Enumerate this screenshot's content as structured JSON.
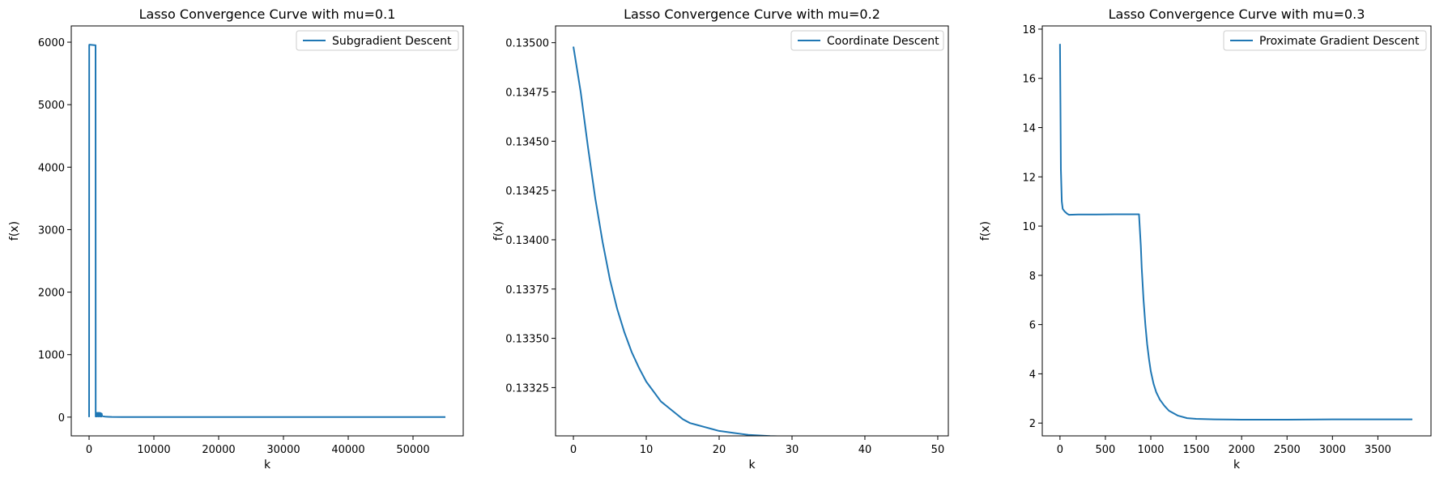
{
  "figure": {
    "line_color": "#1f77b4"
  },
  "chart_data": [
    {
      "type": "line",
      "title": "Lasso Convergence Curve with mu=0.1",
      "xlabel": "k",
      "ylabel": "f(x)",
      "xlim": [
        -2750,
        57750
      ],
      "ylim": [
        -300,
        6260
      ],
      "xticks": [
        0,
        10000,
        20000,
        30000,
        40000,
        50000
      ],
      "xtick_labels": [
        "0",
        "10000",
        "20000",
        "30000",
        "40000",
        "50000"
      ],
      "yticks": [
        0,
        1000,
        2000,
        3000,
        4000,
        5000,
        6000
      ],
      "ytick_labels": [
        "0",
        "1000",
        "2000",
        "3000",
        "4000",
        "5000",
        "6000"
      ],
      "grid": false,
      "legend_position": "top-right",
      "series": [
        {
          "name": "Subgradient Descent",
          "x": [
            0,
            20,
            40,
            1000,
            1020,
            1040,
            1100,
            1150,
            1200,
            1250,
            1300,
            1350,
            1400,
            1450,
            1500,
            1550,
            1600,
            1650,
            1700,
            1750,
            1800,
            1850,
            1900,
            1950,
            2000,
            2200,
            2500,
            3000,
            3500,
            5000,
            55000
          ],
          "y": [
            0,
            5950,
            5960,
            5950,
            10,
            60,
            15,
            65,
            10,
            70,
            15,
            65,
            10,
            70,
            15,
            65,
            10,
            70,
            15,
            65,
            10,
            60,
            10,
            55,
            20,
            12,
            8,
            5,
            3,
            2,
            2
          ]
        }
      ]
    },
    {
      "type": "line",
      "title": "Lasso Convergence Curve with mu=0.2",
      "xlabel": "k",
      "ylabel": "f(x)",
      "xlim": [
        -2.45,
        51.45
      ],
      "ylim": [
        0.133005,
        0.135085
      ],
      "xticks": [
        0,
        10,
        20,
        30,
        40,
        50
      ],
      "xtick_labels": [
        "0",
        "10",
        "20",
        "30",
        "40",
        "50"
      ],
      "yticks": [
        0.13325,
        0.1335,
        0.13375,
        0.134,
        0.13425,
        0.1345,
        0.13475,
        0.135
      ],
      "ytick_labels": [
        "0.13325",
        "0.13350",
        "0.13375",
        "0.13400",
        "0.13425",
        "0.13450",
        "0.13475",
        "0.13500"
      ],
      "grid": false,
      "legend_position": "top-right",
      "series": [
        {
          "name": "Coordinate Descent",
          "x": [
            0,
            1,
            2,
            3,
            4,
            5,
            6,
            7,
            8,
            9,
            10,
            11,
            12,
            13,
            14,
            15,
            16,
            17,
            18,
            19,
            20,
            21,
            22,
            23,
            24,
            25,
            26,
            27,
            28,
            29,
            30,
            31,
            32,
            33,
            34,
            35,
            36,
            37,
            38,
            39,
            40,
            41,
            42,
            43,
            44,
            45,
            46,
            47,
            48,
            49
          ],
          "y": [
            0.13498,
            0.13475,
            0.13447,
            0.13421,
            0.13399,
            0.1338,
            0.13365,
            0.13353,
            0.13343,
            0.13335,
            0.13328,
            0.13323,
            0.13318,
            0.13315,
            0.13312,
            0.13309,
            0.13307,
            0.13306,
            0.13305,
            0.13304,
            0.13303,
            0.133025,
            0.13302,
            0.133015,
            0.13301,
            0.133008,
            0.133006,
            0.133004,
            0.133003,
            0.133002,
            0.133001,
            0.133001,
            0.133,
            0.133,
            0.133,
            0.133,
            0.133,
            0.133,
            0.133,
            0.133,
            0.133,
            0.133,
            0.133,
            0.133,
            0.133,
            0.133,
            0.133,
            0.133,
            0.133,
            0.133
          ]
        }
      ]
    },
    {
      "type": "line",
      "title": "Lasso Convergence Curve with mu=0.3",
      "xlabel": "k",
      "ylabel": "f(x)",
      "xlim": [
        -195,
        4085
      ],
      "ylim": [
        1.48,
        18.13
      ],
      "xticks": [
        0,
        500,
        1000,
        1500,
        2000,
        2500,
        3000,
        3500
      ],
      "xtick_labels": [
        "0",
        "500",
        "1000",
        "1500",
        "2000",
        "2500",
        "3000",
        "3500"
      ],
      "yticks": [
        2,
        4,
        6,
        8,
        10,
        12,
        14,
        16,
        18
      ],
      "ytick_labels": [
        "2",
        "4",
        "6",
        "8",
        "10",
        "12",
        "14",
        "16",
        "18"
      ],
      "grid": false,
      "legend_position": "top-right",
      "series": [
        {
          "name": "Proximate Gradient Descent",
          "x": [
            0,
            5,
            10,
            20,
            30,
            50,
            80,
            100,
            200,
            400,
            600,
            800,
            870,
            890,
            900,
            920,
            940,
            960,
            980,
            1000,
            1030,
            1060,
            1100,
            1150,
            1200,
            1300,
            1400,
            1500,
            1700,
            2000,
            2500,
            3000,
            3500,
            3880
          ],
          "y": [
            17.4,
            15.0,
            12.3,
            11.0,
            10.7,
            10.6,
            10.5,
            10.46,
            10.47,
            10.47,
            10.48,
            10.48,
            10.48,
            9.2,
            8.3,
            7.0,
            6.0,
            5.2,
            4.6,
            4.1,
            3.6,
            3.25,
            2.95,
            2.7,
            2.5,
            2.3,
            2.2,
            2.17,
            2.15,
            2.14,
            2.14,
            2.15,
            2.15,
            2.15
          ]
        }
      ]
    }
  ]
}
